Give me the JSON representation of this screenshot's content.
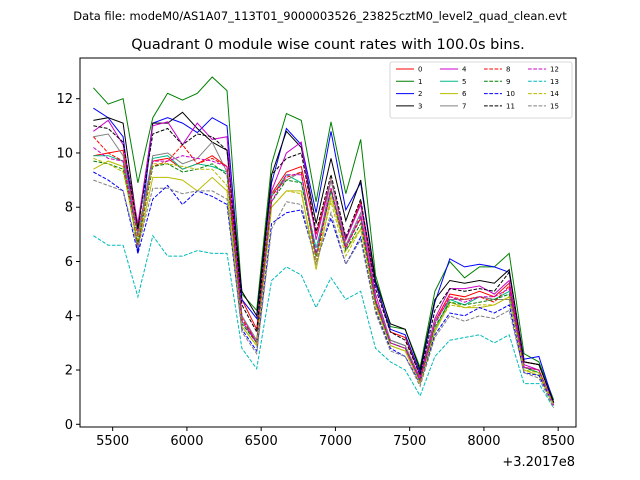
{
  "chart_data": {
    "type": "line",
    "suptitle": "Data file: modeM0/AS1A07_113T01_9000003526_23825cztM0_level2_quad_clean.evt",
    "title": "Quadrant 0 module wise count rates with 100.0s bins.",
    "xlabel": "",
    "ylabel": "",
    "x_offset_label": "+3.2017e8",
    "xlim": [
      5280,
      8620
    ],
    "ylim": [
      -0.1,
      13.5
    ],
    "xticks": [
      5500,
      6000,
      6500,
      7000,
      7500,
      8000,
      8500
    ],
    "yticks": [
      0,
      2,
      4,
      6,
      8,
      10,
      12
    ],
    "x": [
      5370,
      5470,
      5570,
      5670,
      5770,
      5870,
      5970,
      6070,
      6170,
      6270,
      6370,
      6470,
      6570,
      6670,
      6770,
      6870,
      6970,
      7070,
      7170,
      7270,
      7370,
      7470,
      7570,
      7670,
      7770,
      7870,
      7970,
      8070,
      8170,
      8270,
      8370,
      8470
    ],
    "legend": {
      "placement": "top-right",
      "columns": 4
    },
    "series": [
      {
        "name": "0",
        "color": "#ff0000",
        "style": "solid",
        "values": [
          9.9,
          10.0,
          10.1,
          7.1,
          9.7,
          9.8,
          9.4,
          9.6,
          9.9,
          9.5,
          4.6,
          3.5,
          8.5,
          9.3,
          9.5,
          7.0,
          9.0,
          6.8,
          8.2,
          5.2,
          3.4,
          3.2,
          1.8,
          3.8,
          4.8,
          4.7,
          4.9,
          4.7,
          5.2,
          2.3,
          2.2,
          0.8
        ]
      },
      {
        "name": "1",
        "color": "#008000",
        "style": "solid",
        "values": [
          12.4,
          11.8,
          12.0,
          8.9,
          11.3,
          12.2,
          11.95,
          12.2,
          12.8,
          12.3,
          4.8,
          4.2,
          9.6,
          11.45,
          11.2,
          8.2,
          11.15,
          8.5,
          10.5,
          5.5,
          3.6,
          3.5,
          2.1,
          4.9,
          6.0,
          5.4,
          5.8,
          5.8,
          6.3,
          2.6,
          2.3,
          0.9
        ]
      },
      {
        "name": "2",
        "color": "#0000ff",
        "style": "solid",
        "values": [
          11.65,
          11.3,
          10.6,
          6.3,
          11.1,
          11.3,
          11.1,
          10.75,
          11.3,
          11.0,
          4.6,
          3.9,
          8.9,
          10.9,
          10.3,
          7.8,
          10.8,
          7.9,
          8.9,
          5.2,
          3.5,
          3.3,
          1.9,
          4.5,
          6.1,
          5.8,
          5.9,
          5.8,
          5.6,
          2.4,
          2.5,
          0.8
        ]
      },
      {
        "name": "3",
        "color": "#000000",
        "style": "solid",
        "values": [
          11.2,
          11.3,
          11.1,
          7.2,
          11.1,
          11.1,
          11.5,
          10.9,
          10.4,
          10.1,
          4.9,
          4.0,
          9.2,
          10.8,
          10.2,
          7.4,
          9.8,
          7.5,
          9.0,
          5.3,
          3.7,
          3.5,
          2.0,
          4.6,
          5.3,
          5.2,
          5.3,
          5.2,
          5.7,
          2.3,
          2.2,
          0.8
        ]
      },
      {
        "name": "4",
        "color": "#cc00cc",
        "style": "solid",
        "values": [
          10.8,
          11.2,
          10.3,
          7.4,
          11.0,
          11.15,
          10.3,
          11.1,
          10.5,
          10.6,
          4.0,
          3.0,
          8.6,
          10.0,
          10.4,
          6.8,
          9.0,
          6.8,
          8.1,
          4.8,
          3.1,
          2.9,
          1.7,
          3.9,
          5.0,
          5.0,
          5.1,
          4.8,
          5.3,
          2.2,
          2.0,
          0.7
        ]
      },
      {
        "name": "5",
        "color": "#00bb88",
        "style": "solid",
        "values": [
          9.9,
          9.9,
          9.7,
          6.6,
          9.8,
          9.9,
          9.4,
          9.6,
          9.5,
          9.3,
          3.8,
          3.0,
          8.4,
          9.2,
          8.9,
          6.5,
          8.6,
          6.6,
          7.6,
          4.6,
          3.1,
          2.9,
          1.6,
          3.5,
          4.6,
          4.4,
          4.7,
          4.6,
          4.9,
          2.1,
          1.9,
          0.7
        ]
      },
      {
        "name": "6",
        "color": "#bbbb00",
        "style": "solid",
        "values": [
          9.4,
          9.7,
          9.5,
          6.5,
          9.1,
          9.1,
          9.0,
          8.6,
          9.1,
          8.6,
          3.6,
          2.9,
          8.0,
          8.6,
          8.6,
          5.7,
          8.4,
          6.4,
          7.2,
          4.4,
          2.9,
          2.7,
          1.5,
          3.4,
          4.5,
          4.3,
          4.3,
          4.4,
          4.7,
          2.0,
          1.8,
          0.7
        ]
      },
      {
        "name": "7",
        "color": "#808080",
        "style": "solid",
        "values": [
          10.6,
          10.7,
          9.9,
          7.0,
          9.9,
          10.0,
          9.6,
          9.8,
          10.4,
          9.3,
          4.0,
          3.1,
          8.5,
          9.0,
          9.3,
          6.2,
          9.0,
          6.6,
          7.8,
          4.6,
          3.1,
          2.9,
          1.6,
          3.8,
          4.6,
          4.6,
          4.7,
          4.6,
          4.6,
          2.1,
          2.0,
          0.7
        ]
      },
      {
        "name": "8",
        "color": "#ff0000",
        "style": "dashed",
        "values": [
          10.6,
          10.0,
          9.7,
          6.6,
          9.5,
          9.7,
          10.3,
          9.6,
          9.8,
          9.5,
          3.9,
          3.0,
          8.4,
          9.1,
          9.3,
          6.0,
          8.7,
          6.5,
          7.6,
          4.5,
          3.0,
          2.8,
          1.6,
          3.7,
          4.7,
          4.6,
          4.7,
          4.5,
          5.1,
          2.1,
          2.0,
          0.7
        ]
      },
      {
        "name": "9",
        "color": "#008000",
        "style": "dashed",
        "values": [
          9.7,
          9.6,
          9.4,
          6.7,
          9.5,
          9.6,
          9.3,
          9.4,
          9.6,
          9.2,
          3.7,
          3.0,
          8.2,
          9.0,
          8.9,
          6.2,
          8.6,
          6.4,
          7.4,
          4.5,
          3.0,
          2.8,
          1.6,
          3.6,
          4.5,
          4.4,
          4.5,
          4.6,
          4.8,
          2.1,
          1.9,
          0.7
        ]
      },
      {
        "name": "10",
        "color": "#0000ff",
        "style": "dashed",
        "values": [
          9.3,
          9.0,
          8.6,
          6.3,
          8.3,
          8.8,
          8.1,
          8.6,
          8.4,
          8.1,
          3.5,
          2.7,
          7.4,
          7.8,
          7.9,
          6.0,
          7.6,
          5.9,
          6.9,
          4.2,
          2.8,
          2.5,
          1.5,
          3.3,
          4.1,
          4.0,
          4.3,
          4.1,
          4.4,
          1.9,
          1.8,
          0.7
        ]
      },
      {
        "name": "11",
        "color": "#000000",
        "style": "dashed",
        "values": [
          11.0,
          10.9,
          10.4,
          7.2,
          10.7,
          10.9,
          10.3,
          10.7,
          10.6,
          10.1,
          4.4,
          3.4,
          9.2,
          9.8,
          10.0,
          7.1,
          9.2,
          6.9,
          8.3,
          5.0,
          3.4,
          3.1,
          1.8,
          4.2,
          5.0,
          4.9,
          5.0,
          4.9,
          5.6,
          2.3,
          2.2,
          0.8
        ]
      },
      {
        "name": "12",
        "color": "#cc00cc",
        "style": "dashed",
        "values": [
          10.2,
          9.8,
          9.7,
          6.9,
          9.7,
          9.7,
          9.9,
          9.8,
          9.7,
          9.5,
          3.8,
          3.0,
          8.2,
          9.2,
          9.2,
          6.3,
          8.7,
          6.5,
          7.7,
          4.6,
          3.0,
          2.8,
          1.6,
          3.7,
          4.7,
          4.5,
          4.7,
          4.7,
          5.0,
          2.1,
          2.0,
          0.7
        ]
      },
      {
        "name": "13",
        "color": "#00bbbb",
        "style": "dashed",
        "values": [
          6.95,
          6.6,
          6.6,
          4.7,
          6.95,
          6.2,
          6.2,
          6.4,
          6.3,
          6.3,
          2.8,
          2.05,
          5.3,
          5.8,
          5.5,
          4.3,
          5.4,
          4.6,
          4.9,
          2.8,
          2.3,
          2.0,
          1.05,
          2.5,
          3.1,
          3.2,
          3.3,
          3.0,
          3.3,
          1.5,
          1.5,
          0.6
        ]
      },
      {
        "name": "14",
        "color": "#bbbb00",
        "style": "dashed",
        "values": [
          9.8,
          9.6,
          9.3,
          6.8,
          9.6,
          9.6,
          9.5,
          9.4,
          9.4,
          8.8,
          3.6,
          2.9,
          8.0,
          8.6,
          8.5,
          6.0,
          8.2,
          6.2,
          7.2,
          4.3,
          2.9,
          2.7,
          1.5,
          3.5,
          4.4,
          4.3,
          4.4,
          4.4,
          4.7,
          2.0,
          1.9,
          0.7
        ]
      },
      {
        "name": "15",
        "color": "#808080",
        "style": "dashed",
        "values": [
          9.0,
          8.8,
          8.6,
          6.5,
          8.7,
          8.7,
          8.5,
          8.6,
          8.6,
          8.3,
          3.4,
          2.6,
          7.2,
          8.2,
          8.1,
          5.9,
          7.8,
          5.9,
          6.8,
          4.1,
          2.7,
          2.5,
          1.4,
          3.2,
          4.0,
          3.8,
          4.0,
          3.9,
          4.2,
          1.9,
          1.7,
          0.6
        ]
      }
    ]
  }
}
